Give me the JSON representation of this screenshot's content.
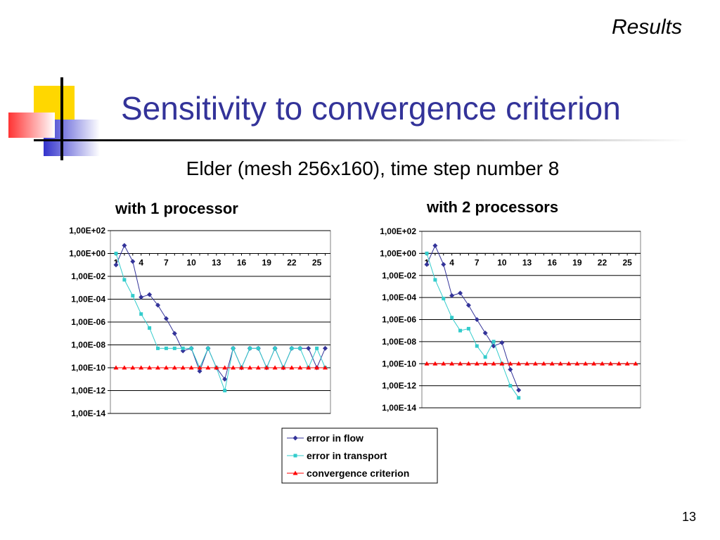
{
  "slide": {
    "section": "Results",
    "title": "Sensitivity to convergence criterion",
    "subtitle": "Elder (mesh 256x160), time step number 8",
    "page_number": "13"
  },
  "colors": {
    "title": "#333399",
    "error_in_flow": "#333399",
    "error_in_transport": "#33CCCC",
    "convergence_criterion": "#FF0000"
  },
  "legend": {
    "items": [
      "error in flow",
      "error in transport",
      "convergence criterion"
    ],
    "placement": "bottom-center"
  },
  "chart_data": [
    {
      "type": "line",
      "title": "with 1 processor",
      "yscale": "log",
      "ylim": [
        1e-14,
        100
      ],
      "y_ticks": [
        "1,00E+02",
        "1,00E+00",
        "1,00E-02",
        "1,00E-04",
        "1,00E-06",
        "1,00E-08",
        "1,00E-10",
        "1,00E-12",
        "1,00E-14"
      ],
      "x_ticks": [
        "1",
        "4",
        "7",
        "10",
        "13",
        "16",
        "19",
        "22",
        "25"
      ],
      "x_range": [
        1,
        26
      ],
      "series": [
        {
          "name": "error in flow",
          "marker": "diamond",
          "color": "#333399",
          "x": [
            1,
            2,
            3,
            4,
            5,
            6,
            7,
            8,
            9,
            10,
            11,
            12,
            13,
            14,
            15,
            16,
            17,
            18,
            19,
            20,
            21,
            22,
            23,
            24,
            25,
            26
          ],
          "y": [
            0.1,
            5,
            0.2,
            0.00015,
            0.00025,
            3e-05,
            2e-06,
            1e-07,
            3e-09,
            5e-09,
            5e-11,
            5e-09,
            1e-10,
            1e-11,
            5e-09,
            1e-10,
            5e-09,
            5e-09,
            1e-10,
            5e-09,
            1e-10,
            5e-09,
            5e-09,
            5e-09,
            1e-10,
            5e-09
          ]
        },
        {
          "name": "error in transport",
          "marker": "square",
          "color": "#33CCCC",
          "x": [
            1,
            2,
            3,
            4,
            5,
            6,
            7,
            8,
            9,
            10,
            11,
            12,
            13,
            14,
            15,
            16,
            17,
            18,
            19,
            20,
            21,
            22,
            23,
            24,
            25,
            26
          ],
          "y": [
            1,
            0.005,
            0.0002,
            5e-06,
            3e-07,
            5e-09,
            5e-09,
            5e-09,
            5e-09,
            5e-09,
            1e-10,
            5e-09,
            1e-10,
            1e-12,
            5e-09,
            1e-10,
            5e-09,
            5e-09,
            1e-10,
            5e-09,
            1e-10,
            5e-09,
            5e-09,
            1e-10,
            5e-09,
            1e-10
          ]
        },
        {
          "name": "convergence criterion",
          "marker": "triangle",
          "color": "#FF0000",
          "x": [
            1,
            2,
            3,
            4,
            5,
            6,
            7,
            8,
            9,
            10,
            11,
            12,
            13,
            14,
            15,
            16,
            17,
            18,
            19,
            20,
            21,
            22,
            23,
            24,
            25,
            26
          ],
          "y": [
            1e-10,
            1e-10,
            1e-10,
            1e-10,
            1e-10,
            1e-10,
            1e-10,
            1e-10,
            1e-10,
            1e-10,
            1e-10,
            1e-10,
            1e-10,
            1e-10,
            1e-10,
            1e-10,
            1e-10,
            1e-10,
            1e-10,
            1e-10,
            1e-10,
            1e-10,
            1e-10,
            1e-10,
            1e-10,
            1e-10
          ]
        }
      ]
    },
    {
      "type": "line",
      "title": "with 2 processors",
      "yscale": "log",
      "ylim": [
        1e-14,
        100
      ],
      "y_ticks": [
        "1,00E+02",
        "1,00E+00",
        "1,00E-02",
        "1,00E-04",
        "1,00E-06",
        "1,00E-08",
        "1,00E-10",
        "1,00E-12",
        "1,00E-14"
      ],
      "x_ticks": [
        "1",
        "4",
        "7",
        "10",
        "13",
        "16",
        "19",
        "22",
        "25"
      ],
      "x_range": [
        1,
        26
      ],
      "series": [
        {
          "name": "error in flow",
          "marker": "diamond",
          "color": "#333399",
          "x": [
            1,
            2,
            3,
            4,
            5,
            6,
            7,
            8,
            9,
            10,
            11,
            12
          ],
          "y": [
            0.1,
            5,
            0.1,
            0.00015,
            0.00025,
            2e-05,
            1e-06,
            6e-08,
            4e-09,
            8e-09,
            3e-11,
            4e-13
          ]
        },
        {
          "name": "error in transport",
          "marker": "square",
          "color": "#33CCCC",
          "x": [
            1,
            2,
            3,
            4,
            5,
            6,
            7,
            8,
            9,
            10,
            11,
            12
          ],
          "y": [
            1,
            0.004,
            8e-05,
            1.5e-06,
            1e-07,
            1.5e-07,
            4e-09,
            4e-10,
            1e-08,
            1e-10,
            1e-12,
            8e-14
          ]
        },
        {
          "name": "convergence criterion",
          "marker": "triangle",
          "color": "#FF0000",
          "x": [
            1,
            2,
            3,
            4,
            5,
            6,
            7,
            8,
            9,
            10,
            11,
            12,
            13,
            14,
            15,
            16,
            17,
            18,
            19,
            20,
            21,
            22,
            23,
            24,
            25,
            26
          ],
          "y": [
            1e-10,
            1e-10,
            1e-10,
            1e-10,
            1e-10,
            1e-10,
            1e-10,
            1e-10,
            1e-10,
            1e-10,
            1e-10,
            1e-10,
            1e-10,
            1e-10,
            1e-10,
            1e-10,
            1e-10,
            1e-10,
            1e-10,
            1e-10,
            1e-10,
            1e-10,
            1e-10,
            1e-10,
            1e-10,
            1e-10
          ]
        }
      ]
    }
  ]
}
